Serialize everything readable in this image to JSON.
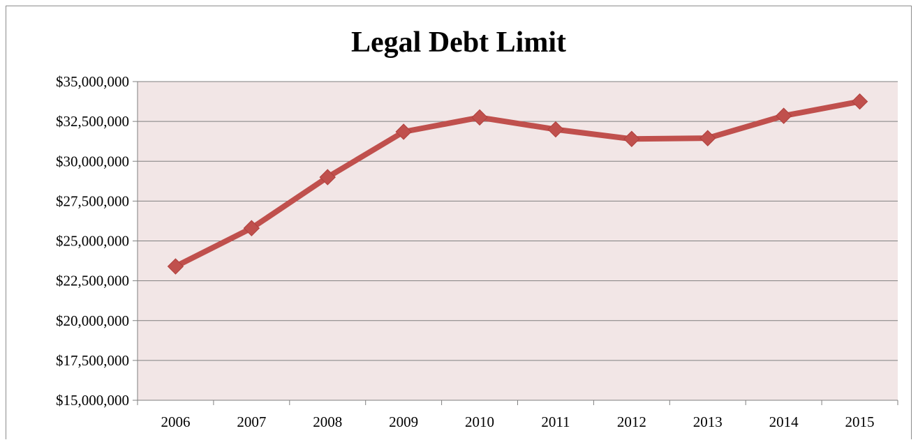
{
  "chart_data": {
    "type": "line",
    "title": "Legal Debt Limit",
    "xlabel": "",
    "ylabel": "",
    "categories": [
      "2006",
      "2007",
      "2008",
      "2009",
      "2010",
      "2011",
      "2012",
      "2013",
      "2014",
      "2015"
    ],
    "series": [
      {
        "values": [
          23400000,
          25800000,
          29000000,
          31850000,
          32750000,
          32000000,
          31400000,
          31450000,
          32850000,
          33750000
        ]
      }
    ],
    "ylim": [
      15000000,
      35000000
    ],
    "ytick_step": 2500000,
    "yticks": [
      "$15,000,000",
      "$17,500,000",
      "$20,000,000",
      "$22,500,000",
      "$25,000,000",
      "$27,500,000",
      "$30,000,000",
      "$32,500,000",
      "$35,000,000"
    ],
    "grid": true,
    "legend": "none",
    "colors": {
      "line": "#c0504d",
      "marker": "#c0504d",
      "plot_background": "#f2e6e6",
      "gridline": "#7f7f7f",
      "axis": "#7f7f7f"
    }
  }
}
